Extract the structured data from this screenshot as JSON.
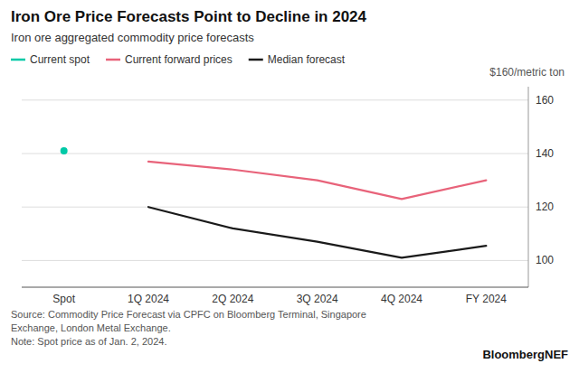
{
  "chart_data": {
    "type": "line",
    "title": "Iron Ore Price Forecasts Point to Decline in 2024",
    "subtitle": "Iron ore aggregated commodity price forecasts",
    "ylabel": "$160/metric ton",
    "source": "Source: Commodity Price Forecast via CPFC on Bloomberg Terminal, Singapore\nExchange, London Metal Exchange.\nNote: Spot price as of Jan. 2, 2024.",
    "brand": "BloombergNEF",
    "categories": [
      "Spot",
      "1Q 2024",
      "2Q 2024",
      "3Q 2024",
      "4Q 2024",
      "FY 2024"
    ],
    "series": [
      {
        "name": "Current spot",
        "color": "#00C9A7",
        "type": "scatter",
        "marker": "circle",
        "values": [
          141.0,
          null,
          null,
          null,
          null,
          null
        ]
      },
      {
        "name": "Current forward prices",
        "color": "#E8637A",
        "type": "line",
        "values": [
          null,
          137.0,
          134.0,
          130.0,
          123.0,
          130.0
        ]
      },
      {
        "name": "Median forecast",
        "color": "#1a1a1a",
        "type": "line",
        "values": [
          null,
          120.0,
          112.0,
          107.0,
          101.0,
          105.5
        ]
      }
    ],
    "ylim": [
      90,
      165
    ],
    "yticks": [
      100,
      120,
      140,
      160
    ],
    "grid": true,
    "legend": "top-left"
  }
}
